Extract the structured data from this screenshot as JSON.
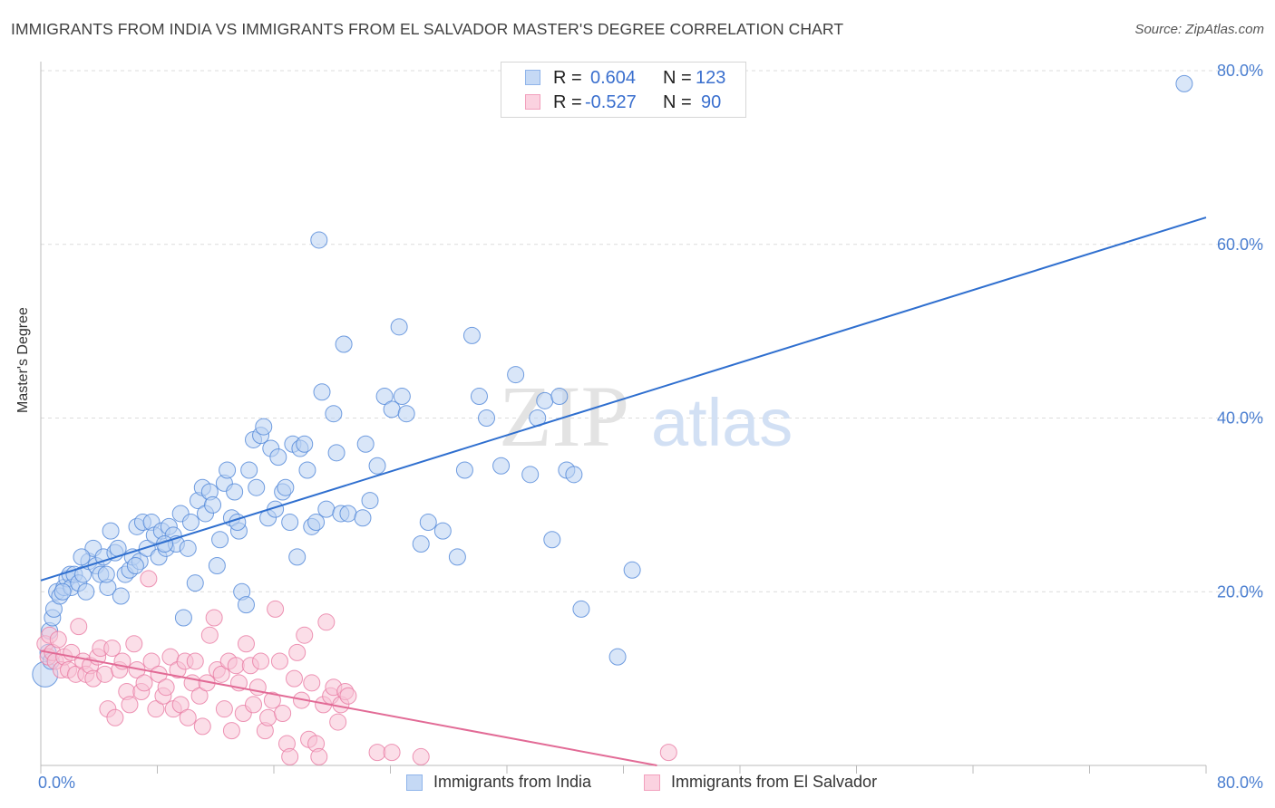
{
  "title": "IMMIGRANTS FROM INDIA VS IMMIGRANTS FROM EL SALVADOR MASTER'S DEGREE CORRELATION CHART",
  "source": "Source: ZipAtlas.com",
  "watermark": {
    "zip": "ZIP",
    "atlas": "atlas"
  },
  "stats": [
    {
      "r_label": "R =",
      "r_value": "0.604",
      "n_label": "N =",
      "n_value": "123",
      "color": "#8fb4ea",
      "fill": "#c5d9f5"
    },
    {
      "r_label": "R =",
      "r_value": "-0.527",
      "n_label": "N =",
      "n_value": "90",
      "color": "#f2a0bd",
      "fill": "#fbd2e0"
    }
  ],
  "legend": [
    {
      "label": "Immigrants from India",
      "color": "#8fb4ea",
      "fill": "#c5d9f5"
    },
    {
      "label": "Immigrants from El Salvador",
      "color": "#f2a0bd",
      "fill": "#fbd2e0"
    }
  ],
  "chart_data": {
    "type": "scatter",
    "title": "IMMIGRANTS FROM INDIA VS IMMIGRANTS FROM EL SALVADOR MASTER'S DEGREE CORRELATION CHART",
    "xlabel": "",
    "ylabel": "Master's Degree",
    "xlim": [
      0,
      80
    ],
    "ylim": [
      0,
      80
    ],
    "x_tick_labels": [
      "0.0%",
      "80.0%"
    ],
    "y_tick_labels": [
      "20.0%",
      "40.0%",
      "60.0%",
      "80.0%"
    ],
    "y_ticks": [
      20,
      40,
      60,
      80
    ],
    "grid": true,
    "legend_position": "bottom",
    "series": [
      {
        "name": "Immigrants from India",
        "color": "#4f86d8",
        "fill": "#b9d1f2",
        "trend_line_color": "#2f6fcf",
        "trend": {
          "x0": 0,
          "y0": 21.3,
          "x1": 80,
          "y1": 63.1
        },
        "points": [
          [
            0.3,
            10.5
          ],
          [
            0.5,
            13
          ],
          [
            0.6,
            15.5
          ],
          [
            0.8,
            17
          ],
          [
            0.9,
            18
          ],
          [
            1.1,
            20
          ],
          [
            1.3,
            19.5
          ],
          [
            1.6,
            20.5
          ],
          [
            1.8,
            21.5
          ],
          [
            2,
            22
          ],
          [
            2.1,
            20.5
          ],
          [
            2.3,
            22
          ],
          [
            2.6,
            21
          ],
          [
            2.9,
            22
          ],
          [
            3.1,
            20
          ],
          [
            3.3,
            23.5
          ],
          [
            3.6,
            25
          ],
          [
            3.8,
            23
          ],
          [
            4.1,
            22
          ],
          [
            4.3,
            24
          ],
          [
            4.6,
            20.5
          ],
          [
            4.8,
            27
          ],
          [
            5.1,
            24.5
          ],
          [
            5.3,
            25
          ],
          [
            5.5,
            19.5
          ],
          [
            5.8,
            22
          ],
          [
            6.1,
            22.5
          ],
          [
            6.3,
            24
          ],
          [
            6.6,
            27.5
          ],
          [
            6.8,
            23.5
          ],
          [
            7,
            28
          ],
          [
            7.3,
            25
          ],
          [
            7.6,
            28
          ],
          [
            7.8,
            26.5
          ],
          [
            8.1,
            24
          ],
          [
            8.3,
            27
          ],
          [
            8.6,
            25
          ],
          [
            8.8,
            27.5
          ],
          [
            9.1,
            26.5
          ],
          [
            9.3,
            25.5
          ],
          [
            9.6,
            29
          ],
          [
            9.8,
            17
          ],
          [
            10.1,
            25
          ],
          [
            10.3,
            28
          ],
          [
            10.6,
            21
          ],
          [
            10.8,
            30.5
          ],
          [
            11.1,
            32
          ],
          [
            11.3,
            29
          ],
          [
            11.6,
            31.5
          ],
          [
            11.8,
            30
          ],
          [
            12.1,
            23
          ],
          [
            12.3,
            26
          ],
          [
            12.6,
            32.5
          ],
          [
            12.8,
            34
          ],
          [
            13.1,
            28.5
          ],
          [
            13.3,
            31.5
          ],
          [
            13.6,
            27
          ],
          [
            13.8,
            20
          ],
          [
            14.1,
            18.5
          ],
          [
            14.3,
            34
          ],
          [
            14.6,
            37.5
          ],
          [
            14.8,
            32
          ],
          [
            15.1,
            38
          ],
          [
            15.3,
            39
          ],
          [
            15.6,
            28.5
          ],
          [
            15.8,
            36.5
          ],
          [
            16.1,
            29.5
          ],
          [
            16.3,
            35.5
          ],
          [
            16.6,
            31.5
          ],
          [
            16.8,
            32
          ],
          [
            17.1,
            28
          ],
          [
            17.3,
            37
          ],
          [
            17.6,
            24
          ],
          [
            17.8,
            36.5
          ],
          [
            18.1,
            37
          ],
          [
            18.3,
            34
          ],
          [
            18.6,
            27.5
          ],
          [
            18.9,
            28
          ],
          [
            19.1,
            60.5
          ],
          [
            19.3,
            43
          ],
          [
            19.6,
            29.5
          ],
          [
            20.1,
            40.5
          ],
          [
            20.3,
            36
          ],
          [
            20.6,
            29
          ],
          [
            20.8,
            48.5
          ],
          [
            21.1,
            29
          ],
          [
            22.1,
            28.5
          ],
          [
            22.3,
            37
          ],
          [
            22.6,
            30.5
          ],
          [
            23.1,
            34.5
          ],
          [
            23.6,
            42.5
          ],
          [
            24.1,
            41
          ],
          [
            24.6,
            50.5
          ],
          [
            24.8,
            42.5
          ],
          [
            25.1,
            40.5
          ],
          [
            26.1,
            25.5
          ],
          [
            26.6,
            28
          ],
          [
            27.6,
            27
          ],
          [
            28.6,
            24
          ],
          [
            29.1,
            34
          ],
          [
            29.6,
            49.5
          ],
          [
            30.1,
            42.5
          ],
          [
            30.6,
            40
          ],
          [
            31.6,
            34.5
          ],
          [
            32.6,
            45
          ],
          [
            33.6,
            33.5
          ],
          [
            34.1,
            40
          ],
          [
            34.6,
            42
          ],
          [
            35.1,
            26
          ],
          [
            35.6,
            42.5
          ],
          [
            36.1,
            34
          ],
          [
            36.6,
            33.5
          ],
          [
            37.1,
            18
          ],
          [
            39.6,
            12.5
          ],
          [
            40.6,
            22.5
          ],
          [
            78.5,
            78.5
          ],
          [
            0.7,
            12
          ],
          [
            1.5,
            20
          ],
          [
            2.8,
            24
          ],
          [
            4.5,
            22
          ],
          [
            6.5,
            23
          ],
          [
            8.5,
            25.5
          ],
          [
            13.5,
            28
          ]
        ]
      },
      {
        "name": "Immigrants from El Salvador",
        "color": "#e97aa3",
        "fill": "#f8c3d6",
        "trend_line_color": "#e26b96",
        "trend": {
          "x0": 0,
          "y0": 13.2,
          "x1": 42.3,
          "y1": 0
        },
        "points": [
          [
            0.3,
            14
          ],
          [
            0.5,
            12.5
          ],
          [
            0.6,
            15
          ],
          [
            0.8,
            13
          ],
          [
            1,
            12
          ],
          [
            1.2,
            14.5
          ],
          [
            1.4,
            11
          ],
          [
            1.6,
            12.5
          ],
          [
            1.9,
            11
          ],
          [
            2.1,
            13
          ],
          [
            2.4,
            10.5
          ],
          [
            2.6,
            16
          ],
          [
            2.9,
            12
          ],
          [
            3.1,
            10.5
          ],
          [
            3.4,
            11.5
          ],
          [
            3.6,
            10
          ],
          [
            3.9,
            12.5
          ],
          [
            4.1,
            13.5
          ],
          [
            4.4,
            10.5
          ],
          [
            4.6,
            6.5
          ],
          [
            4.9,
            13.5
          ],
          [
            5.1,
            5.5
          ],
          [
            5.4,
            11
          ],
          [
            5.6,
            12
          ],
          [
            5.9,
            8.5
          ],
          [
            6.1,
            7
          ],
          [
            6.4,
            14
          ],
          [
            6.6,
            11
          ],
          [
            6.9,
            8.5
          ],
          [
            7.1,
            9.5
          ],
          [
            7.4,
            21.5
          ],
          [
            7.6,
            12
          ],
          [
            7.9,
            6.5
          ],
          [
            8.1,
            10.5
          ],
          [
            8.4,
            8
          ],
          [
            8.6,
            9
          ],
          [
            8.9,
            12.5
          ],
          [
            9.1,
            6.5
          ],
          [
            9.4,
            11
          ],
          [
            9.6,
            7
          ],
          [
            9.9,
            12
          ],
          [
            10.1,
            5.5
          ],
          [
            10.4,
            9.5
          ],
          [
            10.6,
            12
          ],
          [
            10.9,
            8
          ],
          [
            11.1,
            4.5
          ],
          [
            11.4,
            9.5
          ],
          [
            11.6,
            15
          ],
          [
            11.9,
            17
          ],
          [
            12.1,
            11
          ],
          [
            12.4,
            10.5
          ],
          [
            12.6,
            6.5
          ],
          [
            12.9,
            12
          ],
          [
            13.1,
            4
          ],
          [
            13.4,
            11.5
          ],
          [
            13.6,
            9.5
          ],
          [
            13.9,
            6
          ],
          [
            14.1,
            14
          ],
          [
            14.4,
            11.5
          ],
          [
            14.6,
            7
          ],
          [
            14.9,
            9
          ],
          [
            15.1,
            12
          ],
          [
            15.4,
            4
          ],
          [
            15.6,
            5.5
          ],
          [
            15.9,
            7.5
          ],
          [
            16.1,
            18
          ],
          [
            16.4,
            12
          ],
          [
            16.6,
            6
          ],
          [
            16.9,
            2.5
          ],
          [
            17.1,
            1
          ],
          [
            17.4,
            10
          ],
          [
            17.6,
            13
          ],
          [
            17.9,
            7.5
          ],
          [
            18.1,
            15
          ],
          [
            18.4,
            3
          ],
          [
            18.6,
            9.5
          ],
          [
            18.9,
            2.5
          ],
          [
            19.1,
            1
          ],
          [
            19.4,
            7
          ],
          [
            19.6,
            16.5
          ],
          [
            19.9,
            8
          ],
          [
            20.1,
            9
          ],
          [
            20.4,
            5
          ],
          [
            20.6,
            7
          ],
          [
            20.9,
            8.5
          ],
          [
            21.1,
            8
          ],
          [
            23.1,
            1.5
          ],
          [
            24.1,
            1.5
          ],
          [
            26.1,
            1
          ],
          [
            43.1,
            1.5
          ]
        ]
      }
    ]
  }
}
